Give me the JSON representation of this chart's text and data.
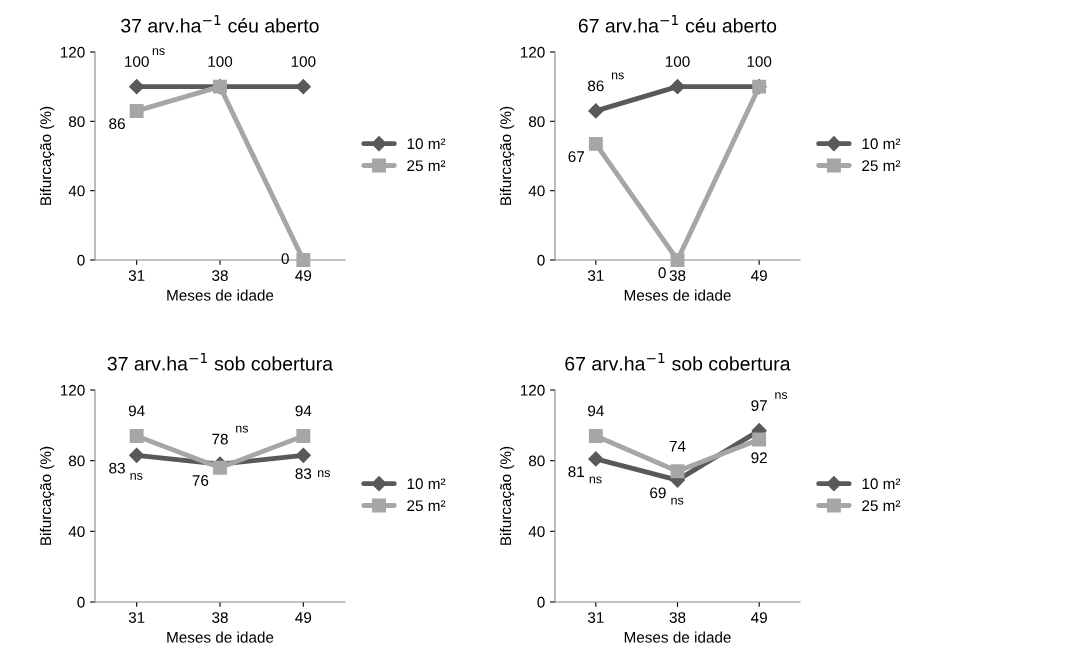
{
  "chart_data": [
    {
      "type": "line",
      "title": "37 arv.ha$^{−1}$ céu aberto",
      "xlabel": "Meses de idade",
      "ylabel": "Bifurcação (%)",
      "categories": [
        "31",
        "38",
        "49"
      ],
      "ylim": [
        0,
        120
      ],
      "yticks": [
        0,
        40,
        80,
        120
      ],
      "legend": "right",
      "grid": false,
      "line_style": "solid",
      "series": [
        {
          "name": "10 m²",
          "color": "#595959",
          "marker": "diamond",
          "values": [
            100,
            100,
            100
          ],
          "value_labels": [
            "100",
            "100",
            "100"
          ]
        },
        {
          "name": "25 m²",
          "color": "#a6a6a6",
          "marker": "square",
          "values": [
            86,
            100,
            0
          ],
          "value_labels": [
            "86",
            null,
            "0"
          ]
        }
      ],
      "annotations": [
        {
          "text": "ns",
          "x": "31",
          "y": 100
        }
      ]
    },
    {
      "type": "line",
      "title": "67 arv.ha$^{−1}$ céu aberto",
      "xlabel": "Meses de idade",
      "ylabel": "Bifurcação (%)",
      "categories": [
        "31",
        "38",
        "49"
      ],
      "ylim": [
        0,
        120
      ],
      "yticks": [
        0,
        40,
        80,
        120
      ],
      "legend": "right",
      "grid": false,
      "line_style": "solid",
      "series": [
        {
          "name": "10 m²",
          "color": "#595959",
          "marker": "diamond",
          "values": [
            86,
            100,
            100
          ],
          "value_labels": [
            "86",
            "100",
            "100"
          ]
        },
        {
          "name": "25 m²",
          "color": "#a6a6a6",
          "marker": "square",
          "values": [
            67,
            0,
            100
          ],
          "value_labels": [
            "67",
            "0",
            null
          ]
        }
      ],
      "annotations": [
        {
          "text": "ns",
          "x": "31",
          "y": 86
        }
      ]
    },
    {
      "type": "line",
      "title": "37 arv.ha$^{−1}$ sob cobertura",
      "xlabel": "Meses de idade",
      "ylabel": "Bifurcação (%)",
      "categories": [
        "31",
        "38",
        "49"
      ],
      "ylim": [
        0,
        120
      ],
      "yticks": [
        0,
        40,
        80,
        120
      ],
      "legend": "right",
      "grid": false,
      "line_style": "solid",
      "series": [
        {
          "name": "10 m²",
          "color": "#595959",
          "marker": "diamond",
          "values": [
            83,
            78,
            83
          ],
          "value_labels": [
            "83",
            "78",
            "83"
          ]
        },
        {
          "name": "25 m²",
          "color": "#a6a6a6",
          "marker": "square",
          "values": [
            94,
            76,
            94
          ],
          "value_labels": [
            "94",
            "76",
            "94"
          ]
        }
      ],
      "annotations": [
        {
          "text": "ns",
          "x": "31",
          "y": 83
        },
        {
          "text": "ns",
          "x": "38",
          "y": 78
        },
        {
          "text": "ns",
          "x": "49",
          "y": 83
        }
      ]
    },
    {
      "type": "line",
      "title": "67 arv.ha$^{−1}$ sob cobertura",
      "xlabel": "Meses de idade",
      "ylabel": "Bifurcação (%)",
      "categories": [
        "31",
        "38",
        "49"
      ],
      "ylim": [
        0,
        120
      ],
      "yticks": [
        0,
        40,
        80,
        120
      ],
      "legend": "right",
      "grid": false,
      "line_style": "solid",
      "series": [
        {
          "name": "10 m²",
          "color": "#595959",
          "marker": "diamond",
          "values": [
            81,
            69,
            97
          ],
          "value_labels": [
            "81",
            "69",
            "97"
          ]
        },
        {
          "name": "25 m²",
          "color": "#a6a6a6",
          "marker": "square",
          "values": [
            94,
            74,
            92
          ],
          "value_labels": [
            "94",
            "74",
            "92"
          ]
        }
      ],
      "annotations": [
        {
          "text": "ns",
          "x": "31",
          "y": 81
        },
        {
          "text": "ns",
          "x": "38",
          "y": 69
        },
        {
          "text": "ns",
          "x": "49",
          "y": 97
        }
      ]
    }
  ]
}
